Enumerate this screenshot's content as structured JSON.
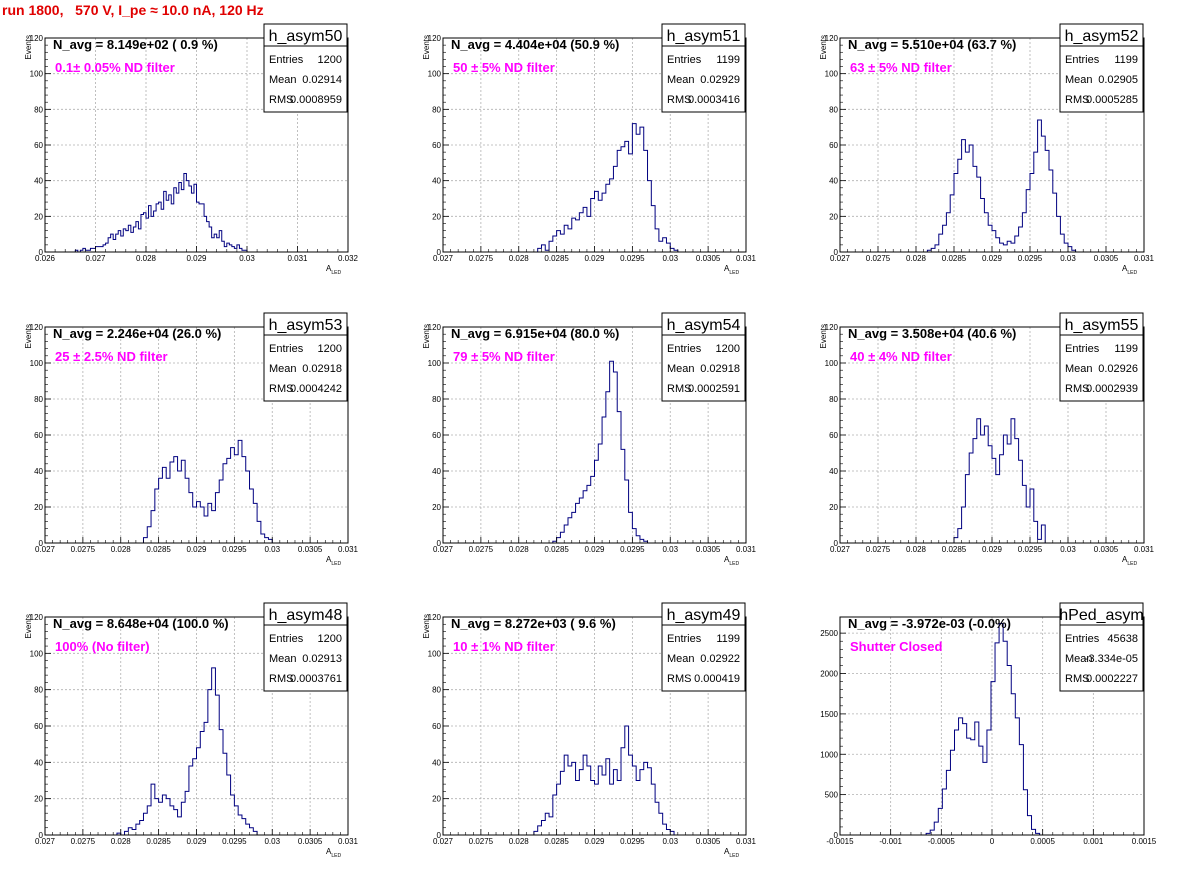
{
  "page_title": "run 1800,   570 V, I_pe ≈ 10.0 nA, 120 Hz",
  "colors": {
    "title": "#e00000",
    "annotation": "#ff00ff",
    "histogram": "#000080"
  },
  "chart_data": [
    {
      "type": "bar",
      "name": "h_asym50",
      "n_avg": "N_avg = 8.149e+02 ( 0.9 %)",
      "annotation": "0.1± 0.05% ND filter",
      "stats": {
        "entries": "1200",
        "mean": "0.02914",
        "rms": "0.0008959"
      },
      "xlabel": "A",
      "xlabel_sub": "LED",
      "ylabel": "Events",
      "xlim": [
        0.026,
        0.032
      ],
      "ylim": [
        0,
        120
      ],
      "xticks": [
        0.026,
        0.027,
        0.028,
        0.029,
        0.03,
        0.031,
        0.032
      ],
      "xticklabels": [
        "0.026",
        "0.027",
        "0.028",
        "0.029",
        "0.03",
        "0.031",
        "0.032"
      ],
      "yticks": [
        0,
        20,
        40,
        60,
        80,
        100,
        120
      ],
      "yticklabels": [
        "0",
        "20",
        "40",
        "60",
        "80",
        "100",
        "120"
      ],
      "bin_start": 0.0266,
      "bin_width": 5e-05,
      "values": [
        1,
        0,
        1,
        2,
        1,
        1,
        2,
        2,
        3,
        3,
        3,
        4,
        5,
        8,
        10,
        7,
        10,
        12,
        9,
        13,
        12,
        15,
        11,
        14,
        17,
        13,
        21,
        22,
        19,
        26,
        20,
        23,
        27,
        28,
        24,
        34,
        29,
        32,
        27,
        36,
        33,
        39,
        35,
        44,
        40,
        37,
        33,
        38,
        28,
        27,
        27,
        20,
        17,
        14,
        8,
        10,
        8,
        12,
        6,
        3,
        5,
        4,
        3,
        2,
        4,
        2,
        1,
        1
      ]
    },
    {
      "type": "bar",
      "name": "h_asym51",
      "n_avg": "N_avg = 4.404e+04 (50.9 %)",
      "annotation": "50 ± 5% ND filter",
      "stats": {
        "entries": "1199",
        "mean": "0.02929",
        "rms": "0.0003416"
      },
      "xlabel": "A",
      "xlabel_sub": "LED",
      "ylabel": "Events",
      "xlim": [
        0.027,
        0.031
      ],
      "ylim": [
        0,
        120
      ],
      "xticks": [
        0.027,
        0.0275,
        0.028,
        0.0285,
        0.029,
        0.0295,
        0.03,
        0.0305,
        0.031
      ],
      "xticklabels": [
        "0.027",
        "0.0275",
        "0.028",
        "0.0285",
        "0.029",
        "0.0295",
        "0.03",
        "0.0305",
        "0.031"
      ],
      "yticks": [
        0,
        20,
        40,
        60,
        80,
        100,
        120
      ],
      "yticklabels": [
        "0",
        "20",
        "40",
        "60",
        "80",
        "100",
        "120"
      ],
      "bin_start": 0.02825,
      "bin_width": 5e-05,
      "values": [
        2,
        4,
        1,
        6,
        9,
        12,
        10,
        15,
        13,
        19,
        18,
        22,
        25,
        20,
        30,
        34,
        29,
        33,
        38,
        41,
        48,
        57,
        59,
        62,
        55,
        72,
        66,
        70,
        57,
        40,
        26,
        13,
        6,
        8,
        5,
        2,
        1
      ]
    },
    {
      "type": "bar",
      "name": "h_asym52",
      "n_avg": "N_avg = 5.510e+04 (63.7 %)",
      "annotation": "63 ± 5% ND filter",
      "stats": {
        "entries": "1199",
        "mean": "0.02905",
        "rms": "0.0005285"
      },
      "xlabel": "A",
      "xlabel_sub": "LED",
      "ylabel": "Events",
      "xlim": [
        0.027,
        0.031
      ],
      "ylim": [
        0,
        120
      ],
      "xticks": [
        0.027,
        0.0275,
        0.028,
        0.0285,
        0.029,
        0.0295,
        0.03,
        0.0305,
        0.031
      ],
      "xticklabels": [
        "0.027",
        "0.0275",
        "0.028",
        "0.0285",
        "0.029",
        "0.0295",
        "0.03",
        "0.0305",
        "0.031"
      ],
      "yticks": [
        0,
        20,
        40,
        60,
        80,
        100,
        120
      ],
      "yticklabels": [
        "0",
        "20",
        "40",
        "60",
        "80",
        "100",
        "120"
      ],
      "bin_start": 0.02815,
      "bin_width": 5e-05,
      "values": [
        1,
        2,
        4,
        10,
        15,
        22,
        32,
        44,
        52,
        63,
        56,
        60,
        48,
        42,
        30,
        22,
        15,
        12,
        8,
        5,
        4,
        6,
        5,
        9,
        14,
        22,
        35,
        44,
        56,
        74,
        65,
        57,
        46,
        33,
        20,
        10,
        5,
        3,
        1
      ]
    },
    {
      "type": "bar",
      "name": "h_asym53",
      "n_avg": "N_avg = 2.246e+04 (26.0 %)",
      "annotation": "25 ± 2.5% ND filter",
      "stats": {
        "entries": "1200",
        "mean": "0.02918",
        "rms": "0.0004242"
      },
      "xlabel": "A",
      "xlabel_sub": "LED",
      "ylabel": "Events",
      "xlim": [
        0.027,
        0.031
      ],
      "ylim": [
        0,
        120
      ],
      "xticks": [
        0.027,
        0.0275,
        0.028,
        0.0285,
        0.029,
        0.0295,
        0.03,
        0.0305,
        0.031
      ],
      "xticklabels": [
        "0.027",
        "0.0275",
        "0.028",
        "0.0285",
        "0.029",
        "0.0295",
        "0.03",
        "0.0305",
        "0.031"
      ],
      "yticks": [
        0,
        20,
        40,
        60,
        80,
        100,
        120
      ],
      "yticklabels": [
        "0",
        "20",
        "40",
        "60",
        "80",
        "100",
        "120"
      ],
      "bin_start": 0.0283,
      "bin_width": 5e-05,
      "values": [
        3,
        9,
        18,
        30,
        36,
        42,
        36,
        45,
        48,
        40,
        46,
        36,
        28,
        20,
        23,
        20,
        15,
        22,
        18,
        28,
        35,
        44,
        47,
        53,
        49,
        57,
        48,
        40,
        30,
        22,
        12,
        5,
        3,
        2
      ]
    },
    {
      "type": "bar",
      "name": "h_asym54",
      "n_avg": "N_avg = 6.915e+04 (80.0 %)",
      "annotation": "79 ± 5% ND filter",
      "stats": {
        "entries": "1200",
        "mean": "0.02918",
        "rms": "0.0002591"
      },
      "xlabel": "A",
      "xlabel_sub": "LED",
      "ylabel": "Events",
      "xlim": [
        0.027,
        0.031
      ],
      "ylim": [
        0,
        120
      ],
      "xticks": [
        0.027,
        0.0275,
        0.028,
        0.0285,
        0.029,
        0.0295,
        0.03,
        0.0305,
        0.031
      ],
      "xticklabels": [
        "0.027",
        "0.0275",
        "0.028",
        "0.0285",
        "0.029",
        "0.0295",
        "0.03",
        "0.0305",
        "0.031"
      ],
      "yticks": [
        0,
        20,
        40,
        60,
        80,
        100,
        120
      ],
      "yticklabels": [
        "0",
        "20",
        "40",
        "60",
        "80",
        "100",
        "120"
      ],
      "bin_start": 0.02845,
      "bin_width": 5e-05,
      "values": [
        1,
        3,
        6,
        10,
        14,
        17,
        22,
        25,
        29,
        32,
        37,
        46,
        55,
        70,
        84,
        101,
        95,
        73,
        52,
        35,
        17,
        8,
        4,
        2,
        1
      ]
    },
    {
      "type": "bar",
      "name": "h_asym55",
      "n_avg": "N_avg = 3.508e+04 (40.6 %)",
      "annotation": "40 ± 4% ND filter",
      "stats": {
        "entries": "1199",
        "mean": "0.02926",
        "rms": "0.0002939"
      },
      "xlabel": "A",
      "xlabel_sub": "LED",
      "ylabel": "Events",
      "xlim": [
        0.027,
        0.031
      ],
      "ylim": [
        0,
        120
      ],
      "xticks": [
        0.027,
        0.0275,
        0.028,
        0.0285,
        0.029,
        0.0295,
        0.03,
        0.0305,
        0.031
      ],
      "xticklabels": [
        "0.027",
        "0.0275",
        "0.028",
        "0.0285",
        "0.029",
        "0.0295",
        "0.03",
        "0.0305",
        "0.031"
      ],
      "yticks": [
        0,
        20,
        40,
        60,
        80,
        100,
        120
      ],
      "yticklabels": [
        "0",
        "20",
        "40",
        "60",
        "80",
        "100",
        "120"
      ],
      "bin_start": 0.0285,
      "bin_width": 5e-05,
      "values": [
        3,
        8,
        20,
        38,
        50,
        58,
        69,
        60,
        65,
        54,
        47,
        38,
        49,
        60,
        55,
        69,
        58,
        46,
        32,
        20,
        30,
        12,
        2,
        10
      ]
    },
    {
      "type": "bar",
      "name": "h_asym48",
      "n_avg": "N_avg = 8.648e+04 (100.0 %)",
      "annotation": "100% (No filter)",
      "stats": {
        "entries": "1200",
        "mean": "0.02913",
        "rms": "0.0003761"
      },
      "xlabel": "A",
      "xlabel_sub": "LED",
      "ylabel": "Events",
      "xlim": [
        0.027,
        0.031
      ],
      "ylim": [
        0,
        120
      ],
      "xticks": [
        0.027,
        0.0275,
        0.028,
        0.0285,
        0.029,
        0.0295,
        0.03,
        0.0305,
        0.031
      ],
      "xticklabels": [
        "0.027",
        "0.0275",
        "0.028",
        "0.0285",
        "0.029",
        "0.0295",
        "0.03",
        "0.0305",
        "0.031"
      ],
      "yticks": [
        0,
        20,
        40,
        60,
        80,
        100,
        120
      ],
      "yticklabels": [
        "0",
        "20",
        "40",
        "60",
        "80",
        "100",
        "120"
      ],
      "bin_start": 0.02795,
      "bin_width": 5e-05,
      "values": [
        1,
        0,
        2,
        4,
        3,
        6,
        8,
        12,
        16,
        28,
        20,
        18,
        22,
        20,
        16,
        14,
        10,
        18,
        24,
        38,
        42,
        48,
        57,
        62,
        80,
        92,
        77,
        58,
        45,
        33,
        22,
        16,
        11,
        9,
        6,
        4,
        2
      ]
    },
    {
      "type": "bar",
      "name": "h_asym49",
      "n_avg": "N_avg = 8.272e+03 ( 9.6 %)",
      "annotation": "10 ± 1% ND filter",
      "stats": {
        "entries": "1199",
        "mean": "0.02922",
        "rms": "0.000419"
      },
      "xlabel": "A",
      "xlabel_sub": "LED",
      "ylabel": "Events",
      "xlim": [
        0.027,
        0.031
      ],
      "ylim": [
        0,
        120
      ],
      "xticks": [
        0.027,
        0.0275,
        0.028,
        0.0285,
        0.029,
        0.0295,
        0.03,
        0.0305,
        0.031
      ],
      "xticklabels": [
        "0.027",
        "0.0275",
        "0.028",
        "0.0285",
        "0.029",
        "0.0295",
        "0.03",
        "0.0305",
        "0.031"
      ],
      "yticks": [
        0,
        20,
        40,
        60,
        80,
        100,
        120
      ],
      "yticklabels": [
        "0",
        "20",
        "40",
        "60",
        "80",
        "100",
        "120"
      ],
      "bin_start": 0.0282,
      "bin_width": 5e-05,
      "values": [
        2,
        5,
        8,
        12,
        10,
        22,
        28,
        35,
        44,
        38,
        40,
        30,
        36,
        44,
        38,
        30,
        28,
        38,
        33,
        42,
        28,
        36,
        30,
        48,
        60,
        44,
        38,
        30,
        36,
        40,
        37,
        28,
        18,
        12,
        6,
        3,
        2
      ]
    },
    {
      "type": "bar",
      "name": "hPed_asym",
      "n_avg": "N_avg = -3.972e-03 (-0.0%)",
      "annotation": "Shutter Closed",
      "stats": {
        "entries": "45638",
        "mean": "-3.334e-05",
        "rms": "0.0002227"
      },
      "xlabel": "",
      "xlabel_sub": "",
      "ylabel": "",
      "xlim": [
        -0.0015,
        0.0015
      ],
      "ylim": [
        0,
        2700
      ],
      "xticks": [
        -0.0015,
        -0.001,
        -0.0005,
        0,
        0.0005,
        0.001,
        0.0015
      ],
      "xticklabels": [
        "-0.0015",
        "-0.001",
        "-0.0005",
        "0",
        "0.0005",
        "0.001",
        "0.0015"
      ],
      "yticks": [
        0,
        500,
        1000,
        1500,
        2000,
        2500
      ],
      "yticklabels": [
        "0",
        "500",
        "1000",
        "1500",
        "2000",
        "2500"
      ],
      "bin_start": -0.00065,
      "bin_width": 4e-05,
      "values": [
        20,
        60,
        160,
        330,
        570,
        800,
        1050,
        1300,
        1450,
        1380,
        1200,
        1180,
        1400,
        1100,
        900,
        1300,
        1900,
        2380,
        2620,
        2400,
        2100,
        1750,
        1450,
        1120,
        560,
        240,
        70,
        20
      ]
    }
  ]
}
